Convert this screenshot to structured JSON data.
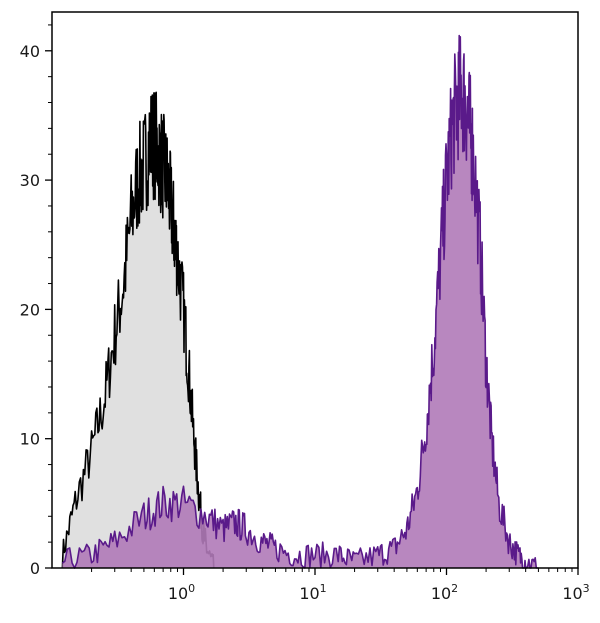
{
  "chart_data": {
    "type": "area",
    "title": "",
    "xlabel": "",
    "ylabel": "",
    "x_scale": "log",
    "xlim": [
      0.1,
      1000
    ],
    "ylim": [
      0,
      43
    ],
    "grid": false,
    "x_ticks": [
      {
        "value": 1,
        "base": "10",
        "exp": "0"
      },
      {
        "value": 10,
        "base": "10",
        "exp": "1"
      },
      {
        "value": 100,
        "base": "10",
        "exp": "2"
      },
      {
        "value": 1000,
        "base": "10",
        "exp": "3"
      }
    ],
    "y_ticks": [
      0,
      10,
      20,
      30,
      40
    ],
    "series": [
      {
        "fill": "#e0e0e0",
        "stroke": "#000000",
        "x": [
          0.12,
          0.15,
          0.2,
          0.25,
          0.3,
          0.35,
          0.4,
          0.45,
          0.5,
          0.55,
          0.6,
          0.65,
          0.7,
          0.75,
          0.8,
          0.85,
          0.9,
          1.0,
          1.1,
          1.2,
          1.3,
          1.4,
          1.5,
          1.7
        ],
        "y": [
          1,
          5,
          9,
          13,
          18,
          22,
          27,
          30,
          31,
          33,
          33,
          32,
          31,
          30,
          28,
          26,
          24,
          20,
          15,
          10,
          6,
          3,
          1.5,
          0
        ]
      },
      {
        "fill": "#b07ab8",
        "stroke": "#5a1a8a",
        "x": [
          0.12,
          0.2,
          0.3,
          0.5,
          0.7,
          1.0,
          1.5,
          2.0,
          2.5,
          3.0,
          4.0,
          5.0,
          7.0,
          10,
          15,
          20,
          30,
          40,
          50,
          60,
          70,
          80,
          90,
          100,
          110,
          120,
          130,
          140,
          150,
          160,
          180,
          200,
          220,
          250,
          300,
          350,
          400,
          500
        ],
        "y": [
          0.5,
          1,
          2,
          4,
          5,
          5,
          4,
          3,
          3.5,
          3,
          2,
          1.5,
          1,
          1,
          1,
          0.5,
          1,
          1.5,
          3,
          6,
          11,
          17,
          24,
          30,
          34,
          36,
          37,
          36,
          34,
          32,
          25,
          16,
          10,
          5,
          2,
          1,
          0.5,
          0
        ]
      }
    ]
  }
}
